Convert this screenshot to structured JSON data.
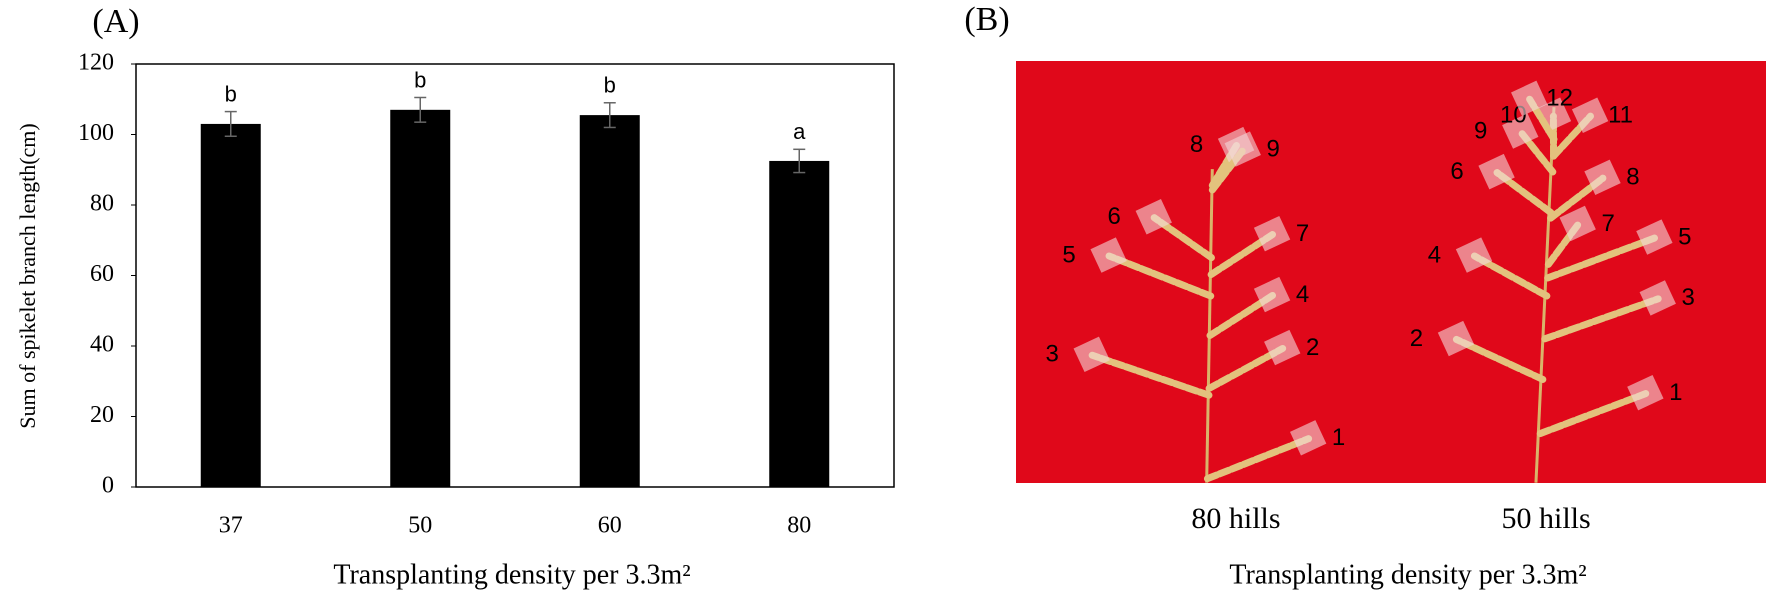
{
  "chart_data": {
    "type": "bar",
    "panel_label": "(A)",
    "y_label": "Sum of spikelet branch length(cm)",
    "x_label": "Transplanting density per 3.3m²",
    "categories": [
      "37",
      "50",
      "60",
      "80"
    ],
    "values": [
      103,
      107,
      105.5,
      92.5
    ],
    "errors": [
      3.5,
      3.5,
      3.5,
      3.3
    ],
    "letters": [
      "b",
      "b",
      "b",
      "a"
    ],
    "color": "#000000",
    "ylim": [
      0,
      120
    ],
    "yticks": [
      0,
      20,
      40,
      60,
      80,
      100,
      120
    ]
  },
  "panel_b": {
    "panel_label": "(B)",
    "x_label": "Transplanting density per 3.3m²",
    "panicles": [
      {
        "label": "80 hills",
        "branch_numbers": [
          1,
          2,
          3,
          4,
          5,
          6,
          7,
          8,
          9
        ]
      },
      {
        "label": "50 hills",
        "branch_numbers": [
          1,
          2,
          3,
          4,
          5,
          6,
          7,
          8,
          9,
          10,
          11,
          12
        ]
      }
    ]
  }
}
